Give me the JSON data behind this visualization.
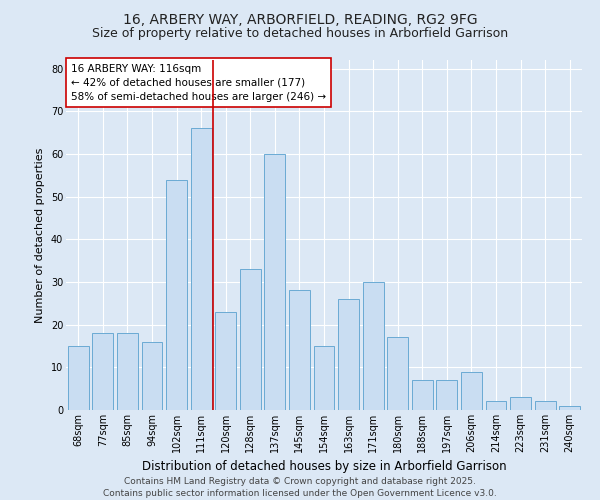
{
  "title1": "16, ARBERY WAY, ARBORFIELD, READING, RG2 9FG",
  "title2": "Size of property relative to detached houses in Arborfield Garrison",
  "xlabel": "Distribution of detached houses by size in Arborfield Garrison",
  "ylabel": "Number of detached properties",
  "categories": [
    "68sqm",
    "77sqm",
    "85sqm",
    "94sqm",
    "102sqm",
    "111sqm",
    "120sqm",
    "128sqm",
    "137sqm",
    "145sqm",
    "154sqm",
    "163sqm",
    "171sqm",
    "180sqm",
    "188sqm",
    "197sqm",
    "206sqm",
    "214sqm",
    "223sqm",
    "231sqm",
    "240sqm"
  ],
  "values": [
    15,
    18,
    18,
    16,
    54,
    66,
    23,
    33,
    60,
    28,
    15,
    26,
    30,
    17,
    7,
    7,
    9,
    2,
    3,
    2,
    1
  ],
  "bar_color": "#c9ddf2",
  "bar_edge_color": "#6aaad4",
  "vline_x": 5.5,
  "vline_color": "#cc0000",
  "annotation_title": "16 ARBERY WAY: 116sqm",
  "annotation_line1": "← 42% of detached houses are smaller (177)",
  "annotation_line2": "58% of semi-detached houses are larger (246) →",
  "annotation_box_color": "#ffffff",
  "annotation_box_edge": "#cc0000",
  "ylim": [
    0,
    82
  ],
  "yticks": [
    0,
    10,
    20,
    30,
    40,
    50,
    60,
    70,
    80
  ],
  "background_color": "#dce8f5",
  "grid_color": "#ffffff",
  "footer": "Contains HM Land Registry data © Crown copyright and database right 2025.\nContains public sector information licensed under the Open Government Licence v3.0.",
  "title_fontsize": 10,
  "subtitle_fontsize": 9,
  "xlabel_fontsize": 8.5,
  "ylabel_fontsize": 8,
  "tick_fontsize": 7,
  "annotation_fontsize": 7.5,
  "footer_fontsize": 6.5
}
